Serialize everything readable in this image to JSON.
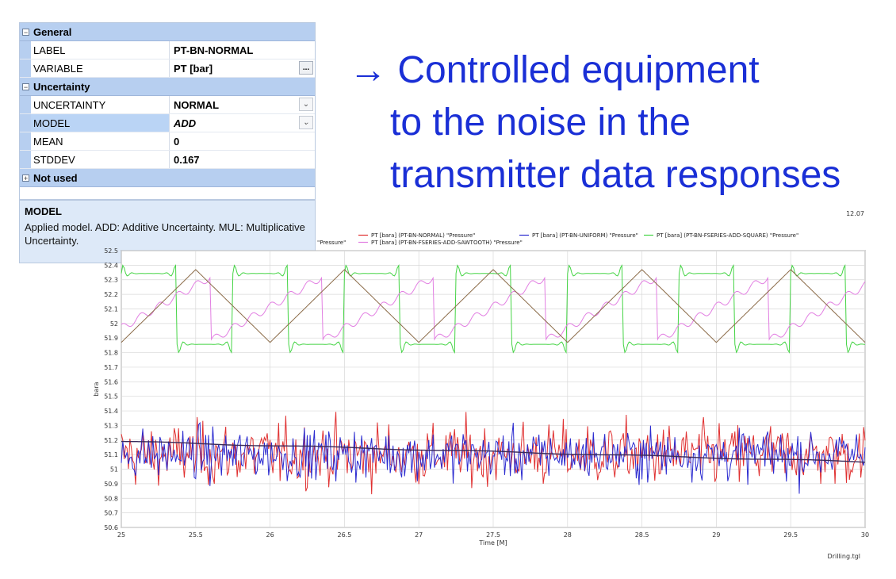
{
  "property_grid": {
    "categories": {
      "general": "General",
      "uncertainty": "Uncertainty",
      "not_used": "Not used"
    },
    "general_rows": [
      {
        "name": "LABEL",
        "value": "PT-BN-NORMAL"
      },
      {
        "name": "VARIABLE",
        "value": "PT [bar]"
      }
    ],
    "uncertainty_rows": [
      {
        "name": "UNCERTAINTY",
        "value": "NORMAL"
      },
      {
        "name": "MODEL",
        "value": "ADD"
      },
      {
        "name": "MEAN",
        "value": "0"
      },
      {
        "name": "STDDEV",
        "value": "0.167"
      }
    ],
    "ellipsis_label": "...",
    "description": {
      "title": "MODEL",
      "text": "Applied model. ADD: Additive Uncertainty. MUL: Multiplicative Uncertainty."
    },
    "selected_row": "MODEL"
  },
  "headline": {
    "arrow": "→",
    "lines": [
      "Controlled equipment",
      "to the noise in the",
      "transmitter data responses"
    ],
    "color": "#1a2fd6"
  },
  "chart_data": {
    "type": "line",
    "ylabel": "bara",
    "xlabel": "Time [M]",
    "xlim": [
      25,
      30
    ],
    "ylim": [
      50.6,
      52.5
    ],
    "x_ticks": [
      "25",
      "25.5",
      "26",
      "26.5",
      "27",
      "27.5",
      "28",
      "28.5",
      "29",
      "29.5",
      "30"
    ],
    "y_ticks": [
      "52.5",
      "52.4",
      "52.3",
      "52.2",
      "52.1",
      "52",
      "51.9",
      "51.8",
      "51.7",
      "51.6",
      "51.5",
      "51.4",
      "51.3",
      "51.2",
      "51.1",
      "51",
      "50.9",
      "50.8",
      "50.7",
      "50.6"
    ],
    "grid": true,
    "legend_placement": "top",
    "legend_prefix_fragment": "\"Pressure\"",
    "corner_note": "Drilling.tgl",
    "top_right_note": "12.07",
    "series": [
      {
        "name": "PT [bara] (PT-BN-NORMAL) \"Pressure\"",
        "color": "#e03030",
        "kind": "noise",
        "mean": 51.1,
        "sd": 0.15
      },
      {
        "name": "PT [bara] (PT-BN-UNIFORM) \"Pressure\"",
        "color": "#2b2bd0",
        "kind": "noise",
        "mean": 51.1,
        "sd": 0.12
      },
      {
        "name": "PT [bara] (PT-BN-FSERIES-ADD-SQUARE) \"Pressure\"",
        "color": "#44d444",
        "kind": "square",
        "center": 52.1,
        "amplitude": 0.27,
        "period": 0.75
      },
      {
        "name": "PT [bara] (PT-BN-FSERIES-ADD-SAWTOOTH) \"Pressure\"",
        "color": "#e27fe2",
        "kind": "sawtooth",
        "center": 52.1,
        "amplitude": 0.22,
        "period": 0.75
      },
      {
        "name": "",
        "color": "#8b6b48",
        "kind": "triangle",
        "center": 52.12,
        "amplitude": 0.25,
        "period": 1.0
      },
      {
        "name": "",
        "color": "#3a2a5a",
        "kind": "trend",
        "y_start": 51.19,
        "y_end": 51.05
      }
    ]
  }
}
